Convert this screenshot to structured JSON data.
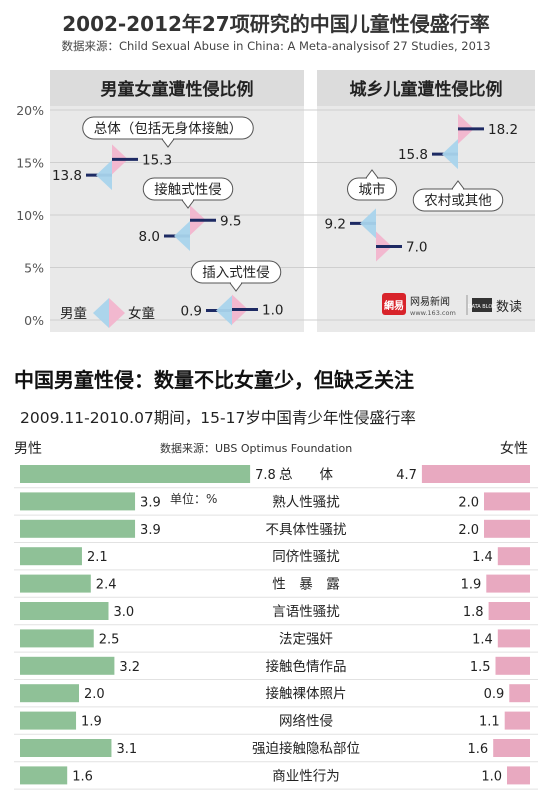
{
  "title": "2002-2012年27项研究的中国儿童性侵盛行率",
  "source1": "数据来源：Child Sexual Abuse in China: A Meta-analysisof 27 Studies, 2013",
  "headline": "中国男童性侵：数量不比女童少，但缺乏关注",
  "subtitle2": "2009.11-2010.07期间，15-17岁中国青少年性侵盛行率",
  "male_label": "男性",
  "female_label": "女性",
  "source2": "数据来源：UBS Optimus Foundation",
  "unit_note": "单位：%",
  "brand": {
    "logo_text": "網易",
    "site": "网易新闻",
    "url": "www.163.com",
    "tag": "DATA BLOG",
    "name": "数读"
  },
  "colors": {
    "boy": "#a9d4ec",
    "girl": "#f2b5cd",
    "line": "#1d2a63",
    "male_bar": "#8fc197",
    "female_bar": "#e8a9c0",
    "panel": "#e9e9e9",
    "logo_red": "#d8232a"
  },
  "chart_data": [
    {
      "type": "dot-range",
      "panel_title": "男童女童遭性侵比例",
      "ylim": [
        0,
        20
      ],
      "y_ticks": [
        "0%",
        "5%",
        "10%",
        "15%",
        "20%"
      ],
      "legend": [
        "男童",
        "女童"
      ],
      "groups": [
        {
          "label": "总体（包括无身体接触）",
          "boy": 13.8,
          "girl": 15.3,
          "boy_text": "13.8",
          "girl_text": "15.3"
        },
        {
          "label": "接触式性侵",
          "boy": 8.0,
          "girl": 9.5,
          "boy_text": "8.0",
          "girl_text": "9.5"
        },
        {
          "label": "插入式性侵",
          "boy": 0.9,
          "girl": 1.0,
          "boy_text": "0.9",
          "girl_text": "1.0"
        }
      ]
    },
    {
      "type": "dot-range",
      "panel_title": "城乡儿童遭性侵比例",
      "ylim": [
        0,
        20
      ],
      "groups": [
        {
          "label": "城市",
          "low": 15.8,
          "high": 18.2,
          "low_text": "15.8",
          "high_text": "18.2"
        },
        {
          "label": "农村或其他",
          "low": 7.0,
          "high": 9.2,
          "low_text": "7.0",
          "high_text": "9.2"
        }
      ]
    },
    {
      "type": "bar",
      "orientation": "diverging",
      "categories": [
        "总　　体",
        "熟人性骚扰",
        "不具体性骚扰",
        "同侪性骚扰",
        "性　暴　露",
        "言语性骚扰",
        "法定强奸",
        "接触色情作品",
        "接触裸体照片",
        "网络性侵",
        "强迫接触隐私部位",
        "商业性行为"
      ],
      "series": [
        {
          "name": "男性",
          "values": [
            7.8,
            3.9,
            3.9,
            2.1,
            2.4,
            3.0,
            2.5,
            3.2,
            2.0,
            1.9,
            3.1,
            1.6
          ],
          "labels": [
            "7.8",
            "3.9",
            "3.9",
            "2.1",
            "2.4",
            "3.0",
            "2.5",
            "3.2",
            "2.0",
            "1.9",
            "3.1",
            "1.6"
          ]
        },
        {
          "name": "女性",
          "values": [
            4.7,
            2.0,
            2.0,
            1.4,
            1.9,
            1.8,
            1.4,
            1.5,
            0.9,
            1.1,
            1.6,
            1.0
          ],
          "labels": [
            "4.7",
            "2.0",
            "2.0",
            "1.4",
            "1.9",
            "1.8",
            "1.4",
            "1.5",
            "0.9",
            "1.1",
            "1.6",
            "1.0"
          ]
        }
      ]
    }
  ]
}
